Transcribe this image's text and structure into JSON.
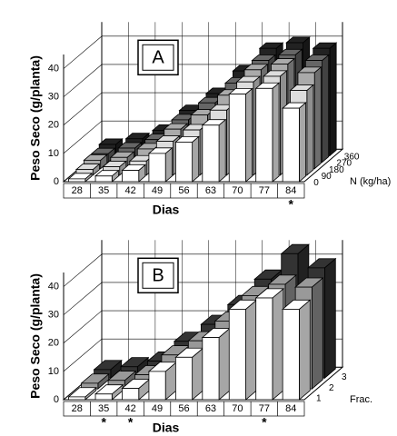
{
  "chart_data": [
    {
      "type": "bar3d",
      "panel_label": "A",
      "y_label": "Peso Seco (g/planta)",
      "x_label": "Dias",
      "depth_label": "N (kg/ha)",
      "categories": [
        "28",
        "35",
        "42",
        "49",
        "56",
        "63",
        "70",
        "77",
        "84"
      ],
      "series": [
        {
          "name": "0",
          "color": "#ffffff",
          "values": [
            1,
            2,
            4,
            10,
            14,
            20,
            31,
            33,
            26
          ]
        },
        {
          "name": "90",
          "color": "#dddddd",
          "values": [
            2,
            3,
            5,
            12,
            16,
            23,
            33,
            35,
            30
          ]
        },
        {
          "name": "180",
          "color": "#aaaaaa",
          "values": [
            3,
            4,
            7,
            14,
            19,
            26,
            35,
            37,
            34
          ]
        },
        {
          "name": "270",
          "color": "#666666",
          "values": [
            3,
            5,
            8,
            15,
            21,
            28,
            36,
            38,
            36
          ]
        },
        {
          "name": "360",
          "color": "#222222",
          "values": [
            4,
            6,
            9,
            16,
            22,
            30,
            38,
            40,
            38
          ]
        }
      ],
      "annotations": [
        {
          "text": "*",
          "category": "84"
        }
      ],
      "ylim": [
        0,
        45
      ],
      "yticks": [
        0,
        10,
        20,
        30,
        40
      ],
      "grid": true
    },
    {
      "type": "bar3d",
      "panel_label": "B",
      "y_label": "Peso Seco (g/planta)",
      "x_label": "Dias",
      "depth_label": "Frac.",
      "categories": [
        "28",
        "35",
        "42",
        "49",
        "56",
        "63",
        "70",
        "77",
        "84"
      ],
      "series": [
        {
          "name": "1",
          "color": "#ffffff",
          "values": [
            1,
            2,
            4,
            10,
            15,
            22,
            32,
            36,
            32
          ]
        },
        {
          "name": "2",
          "color": "#999999",
          "values": [
            2,
            3,
            5,
            12,
            17,
            24,
            33,
            37,
            36
          ]
        },
        {
          "name": "3",
          "color": "#333333",
          "values": [
            3,
            4,
            6,
            13,
            19,
            26,
            35,
            44,
            39
          ]
        }
      ],
      "annotations": [
        {
          "text": "*",
          "category": "35"
        },
        {
          "text": "*",
          "category": "42"
        },
        {
          "text": "*",
          "category": "77"
        }
      ],
      "ylim": [
        0,
        45
      ],
      "yticks": [
        0,
        10,
        20,
        30,
        40
      ],
      "grid": true
    }
  ]
}
